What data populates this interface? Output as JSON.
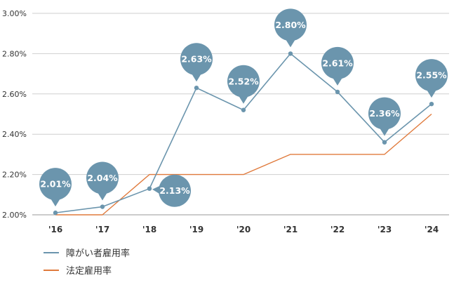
{
  "chart_data": {
    "type": "line",
    "categories": [
      "'16",
      "'17",
      "'18",
      "'19",
      "'20",
      "'21",
      "'22",
      "'23",
      "'24"
    ],
    "series": [
      {
        "name": "障がい者雇用率",
        "values": [
          2.01,
          2.04,
          2.13,
          2.63,
          2.52,
          2.8,
          2.61,
          2.36,
          2.55
        ],
        "color": "#6b95ad",
        "labels": [
          "2.01%",
          "2.04%",
          "2.13%",
          "2.63%",
          "2.52%",
          "2.80%",
          "2.61%",
          "2.36%",
          "2.55%"
        ]
      },
      {
        "name": "法定雇用率",
        "values": [
          2.0,
          2.0,
          2.2,
          2.2,
          2.2,
          2.3,
          2.3,
          2.3,
          2.5
        ],
        "color": "#e07a3c"
      }
    ],
    "y_ticks": [
      "2.00%",
      "2.20%",
      "2.40%",
      "2.60%",
      "2.80%",
      "3.00%"
    ],
    "ylim": [
      2.0,
      3.0
    ],
    "grid": true,
    "legend_position": "bottom-left",
    "bubble_color": "#6b95ad"
  }
}
